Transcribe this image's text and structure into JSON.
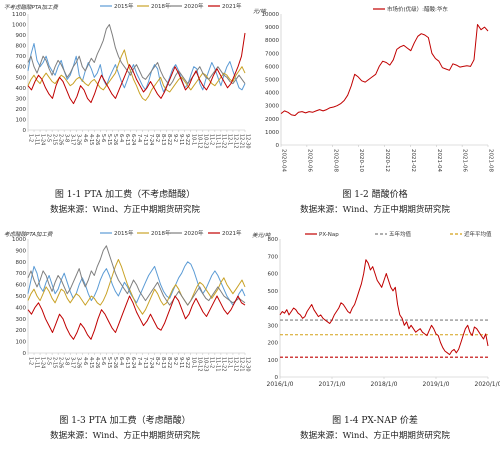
{
  "colors": {
    "s2015": "#5b9bd5",
    "s2018": "#c9a227",
    "s2020": "#7f7f7f",
    "s2021": "#c00000",
    "acid": "#c00000",
    "pxnap": "#c00000",
    "avg5": "#7f7f7f",
    "avg3": "#d4a017"
  },
  "chart_data": [
    {
      "id": "p1",
      "type": "line",
      "ylabel": "不考虑醋酸PTA加工费",
      "caption": "图 1-1 PTA 加工费（不考虑醋酸）",
      "source": "数据来源：Wind、方正中期期货研究院",
      "ylim": [
        0,
        1100
      ],
      "yticks": [
        0,
        100,
        200,
        300,
        400,
        500,
        600,
        700,
        800,
        900,
        1000,
        1100
      ],
      "xticks": [
        "1-2",
        "1-11",
        "1-24",
        "2-5",
        "2-15",
        "2-26",
        "3-8",
        "3-17",
        "3-26",
        "4-6",
        "4-15",
        "4-26",
        "5-6",
        "5-15",
        "5-26",
        "6-4",
        "6-13",
        "6-24",
        "7-4",
        "7-13",
        "7-24",
        "8-2",
        "8-13",
        "8-22",
        "9-2",
        "9-11",
        "9-22",
        "10-1",
        "10-12",
        "10-23",
        "11-2",
        "11-11",
        "11-22",
        "12-1",
        "12-12",
        "12-21",
        "12-30"
      ],
      "series": [
        {
          "name": "2015年",
          "color": "#5b9bd5",
          "values": [
            560,
            720,
            820,
            660,
            600,
            640,
            700,
            610,
            560,
            520,
            600,
            660,
            560,
            480,
            520,
            600,
            700,
            520,
            460,
            560,
            640,
            580,
            500,
            540,
            620,
            480,
            420,
            500,
            560,
            620,
            540,
            460,
            400,
            480,
            560,
            620,
            540,
            480,
            420,
            380,
            460,
            560,
            620,
            580,
            440,
            360,
            420,
            500,
            580,
            620,
            560,
            480,
            400,
            430,
            520,
            600,
            580,
            440,
            380,
            480,
            560,
            640,
            580,
            500,
            420,
            520,
            600,
            650,
            560,
            480,
            400,
            380,
            440
          ]
        },
        {
          "name": "2018年",
          "color": "#c9a227",
          "values": [
            420,
            480,
            520,
            470,
            440,
            500,
            540,
            500,
            460,
            440,
            480,
            520,
            500,
            460,
            420,
            440,
            480,
            500,
            470,
            440,
            420,
            460,
            480,
            440,
            400,
            380,
            420,
            460,
            500,
            540,
            620,
            700,
            760,
            640,
            560,
            480,
            420,
            350,
            300,
            280,
            320,
            380,
            420,
            460,
            500,
            420,
            380,
            360,
            400,
            440,
            480,
            500,
            460,
            420,
            380,
            420,
            460,
            500,
            540,
            520,
            480,
            440,
            420,
            460,
            500,
            540,
            520,
            480,
            460,
            520,
            560,
            600,
            540
          ]
        },
        {
          "name": "2020年",
          "color": "#7f7f7f",
          "values": [
            640,
            700,
            600,
            540,
            620,
            700,
            660,
            580,
            520,
            600,
            660,
            620,
            560,
            500,
            540,
            600,
            640,
            700,
            600,
            560,
            620,
            680,
            640,
            720,
            780,
            850,
            960,
            1000,
            900,
            780,
            700,
            640,
            600,
            560,
            520,
            580,
            620,
            560,
            500,
            480,
            520,
            560,
            600,
            640,
            560,
            500,
            460,
            420,
            460,
            520,
            560,
            520,
            480,
            440,
            480,
            520,
            560,
            600,
            540,
            500,
            480,
            520,
            560,
            600,
            560,
            520,
            500,
            460,
            440,
            480,
            520,
            480,
            440
          ]
        },
        {
          "name": "2021年",
          "color": "#c00000",
          "values": [
            420,
            380,
            460,
            520,
            480,
            400,
            340,
            300,
            420,
            500,
            460,
            380,
            300,
            250,
            320,
            420,
            380,
            300,
            260,
            340,
            440,
            520,
            460,
            400,
            340,
            300,
            380,
            460,
            540,
            620,
            560,
            480,
            420,
            360,
            400,
            460,
            400,
            340,
            300,
            360,
            440,
            520,
            600,
            540,
            460,
            380,
            420,
            500,
            560,
            480,
            420,
            380,
            440,
            520,
            580,
            520,
            460,
            400,
            440,
            520,
            600,
            700,
            920
          ]
        }
      ]
    },
    {
      "id": "p2",
      "type": "line",
      "ylabel": "元/吨",
      "caption": "图 1-2 醋酸价格",
      "source": "数据来源：Wind、方正中期期货研究院",
      "ylim": [
        0,
        10000
      ],
      "yticks": [
        0,
        1000,
        2000,
        3000,
        4000,
        5000,
        6000,
        7000,
        8000,
        9000,
        10000
      ],
      "xticks": [
        "2020-04",
        "2020-06",
        "2020-08",
        "2020-10",
        "2020-12",
        "2021-02",
        "2021-04",
        "2021-06",
        "2021-08"
      ],
      "series": [
        {
          "name": "市场价(优级）:醋酸:华东",
          "color": "#c00000",
          "values": [
            2400,
            2600,
            2500,
            2300,
            2250,
            2500,
            2550,
            2450,
            2550,
            2500,
            2600,
            2700,
            2600,
            2700,
            2850,
            2900,
            3000,
            3150,
            3400,
            3800,
            4500,
            5400,
            5200,
            4900,
            4800,
            5000,
            5200,
            5400,
            6000,
            6400,
            6300,
            6100,
            6500,
            7300,
            7500,
            7600,
            7400,
            7200,
            7800,
            8300,
            8500,
            8400,
            8200,
            7000,
            6600,
            6400,
            5900,
            5800,
            5700,
            6200,
            6100,
            5950,
            6000,
            6050,
            6000,
            6500,
            9200,
            8800,
            9000,
            8700
          ]
        }
      ]
    },
    {
      "id": "p3",
      "type": "line",
      "ylabel": "考虑醋酸PTA加工费",
      "caption": "图 1-3 PTA 加工费（考虑醋酸）",
      "source": "数据来源：Wind、方正中期期货研究院",
      "ylim": [
        0,
        1000
      ],
      "yticks": [
        0,
        100,
        200,
        300,
        400,
        500,
        600,
        700,
        800,
        900,
        1000
      ],
      "xticks": [
        "1-2",
        "1-11",
        "1-24",
        "2-5",
        "2-15",
        "2-26",
        "3-8",
        "3-17",
        "3-26",
        "4-6",
        "4-15",
        "4-26",
        "5-6",
        "5-15",
        "5-26",
        "6-4",
        "6-13",
        "6-24",
        "7-4",
        "7-13",
        "7-24",
        "8-2",
        "8-13",
        "8-22",
        "9-2",
        "9-11",
        "9-22",
        "10-1",
        "10-12",
        "10-23",
        "11-2",
        "11-11",
        "11-22",
        "12-1",
        "12-12",
        "12-21",
        "12-30"
      ],
      "series": [
        {
          "name": "2015年",
          "color": "#5b9bd5",
          "values": [
            520,
            640,
            760,
            700,
            580,
            540,
            620,
            680,
            600,
            520,
            560,
            640,
            700,
            620,
            540,
            480,
            520,
            600,
            660,
            600,
            520,
            460,
            500,
            560,
            640,
            700,
            740,
            680,
            600,
            540,
            500,
            560,
            620,
            580,
            520,
            480,
            440,
            500,
            560,
            620,
            680,
            720,
            760,
            680,
            600,
            540,
            500,
            480,
            540,
            600,
            660,
            700,
            760,
            800,
            780,
            720,
            640,
            560,
            520,
            560,
            620,
            680,
            720,
            680,
            620,
            560,
            500,
            460,
            420,
            460,
            520,
            560,
            500
          ]
        },
        {
          "name": "2018年",
          "color": "#c9a227",
          "values": [
            460,
            520,
            560,
            500,
            460,
            520,
            580,
            540,
            480,
            440,
            500,
            560,
            540,
            480,
            440,
            480,
            520,
            500,
            460,
            420,
            460,
            500,
            480,
            440,
            420,
            460,
            520,
            600,
            680,
            760,
            820,
            760,
            680,
            600,
            540,
            480,
            420,
            380,
            340,
            380,
            440,
            500,
            560,
            520,
            460,
            420,
            440,
            500,
            560,
            600,
            560,
            500,
            460,
            420,
            460,
            520,
            580,
            620,
            600,
            560,
            520,
            480,
            520,
            560,
            620,
            660,
            600,
            560,
            520,
            560,
            600,
            640,
            580
          ]
        },
        {
          "name": "2020年",
          "color": "#7f7f7f",
          "values": [
            660,
            720,
            640,
            580,
            640,
            720,
            680,
            600,
            540,
            620,
            680,
            640,
            580,
            520,
            560,
            620,
            680,
            740,
            640,
            580,
            640,
            720,
            680,
            760,
            820,
            900,
            940,
            860,
            780,
            700,
            640,
            600,
            560,
            520,
            580,
            640,
            600,
            540,
            500,
            460,
            500,
            540,
            580,
            620,
            560,
            500,
            460,
            420,
            460,
            500,
            540,
            500,
            460,
            420,
            460,
            500,
            540,
            580,
            520,
            480,
            460,
            500,
            540,
            580,
            540,
            500,
            480,
            460,
            440,
            460,
            480,
            460,
            440
          ]
        },
        {
          "name": "2021年",
          "color": "#c00000",
          "values": [
            380,
            340,
            400,
            440,
            380,
            300,
            240,
            180,
            260,
            340,
            300,
            220,
            160,
            120,
            180,
            260,
            220,
            160,
            120,
            200,
            300,
            380,
            340,
            280,
            220,
            180,
            260,
            340,
            420,
            500,
            440,
            360,
            300,
            240,
            280,
            340,
            280,
            220,
            200,
            260,
            340,
            420,
            500,
            460,
            380,
            300,
            340,
            420,
            480,
            420,
            360,
            320,
            380,
            440,
            500,
            440,
            380,
            340,
            380,
            440,
            500,
            440,
            420
          ]
        }
      ]
    },
    {
      "id": "p4",
      "type": "line",
      "ylabel": "美元/吨",
      "caption": "图 1-4 PX-NAP 价差",
      "source": "数据来源：Wind、方正中期期货研究院",
      "ylim": [
        0,
        800
      ],
      "yticks": [
        0,
        100,
        200,
        300,
        400,
        500,
        600,
        700,
        800
      ],
      "xticks": [
        "2016/1/0",
        "2017/1/0",
        "2018/1/0",
        "2019/1/0",
        "2020/1/0"
      ],
      "hlines": [
        {
          "name": "五年均值",
          "value": 330,
          "color": "#7f7f7f"
        },
        {
          "name": "近年平均值",
          "value": 245,
          "color": "#d4a017"
        },
        {
          "name": "",
          "value": 115,
          "color": "#c00000"
        }
      ],
      "series": [
        {
          "name": "PX-Nap",
          "color": "#c00000",
          "values": [
            360,
            380,
            370,
            390,
            360,
            380,
            400,
            390,
            370,
            360,
            340,
            350,
            380,
            400,
            420,
            390,
            370,
            350,
            360,
            340,
            330,
            320,
            310,
            330,
            360,
            380,
            400,
            430,
            420,
            400,
            380,
            370,
            400,
            420,
            460,
            500,
            540,
            600,
            680,
            660,
            620,
            640,
            600,
            560,
            540,
            520,
            560,
            600,
            560,
            520,
            500,
            520,
            420,
            360,
            340,
            300,
            320,
            280,
            300,
            280,
            260,
            270,
            280,
            260,
            250,
            240,
            270,
            300,
            280,
            250,
            240,
            200,
            170,
            150,
            140,
            130,
            150,
            160,
            140,
            160,
            200,
            240,
            280,
            300,
            260,
            240,
            290,
            280,
            260,
            240,
            220,
            250,
            180
          ]
        }
      ]
    }
  ]
}
